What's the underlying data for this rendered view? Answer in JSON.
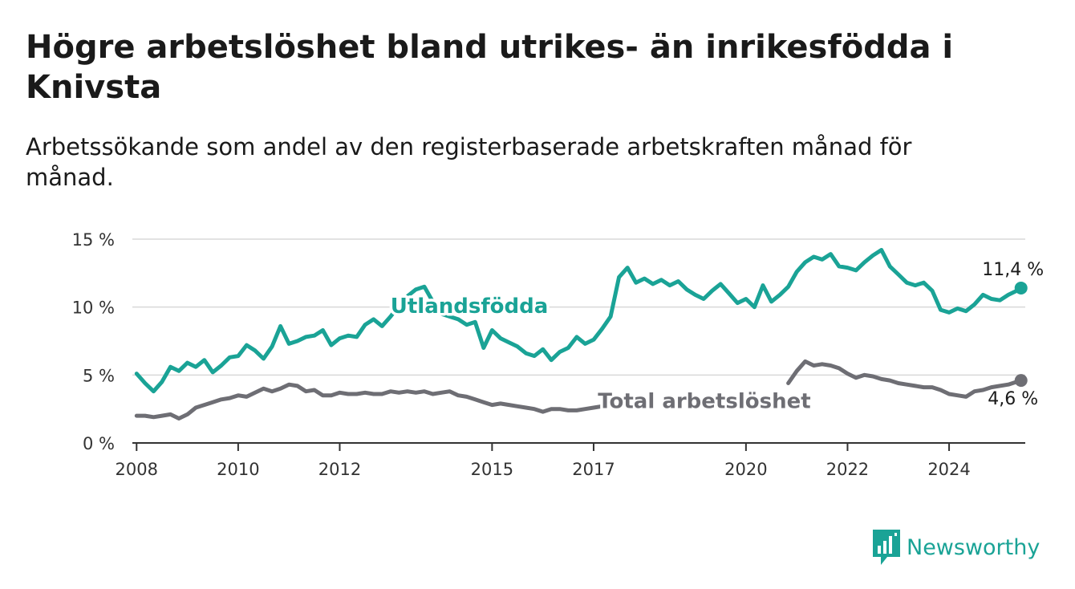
{
  "title": "Högre arbetslöshet bland utrikes- än inrikesfödda i Knivsta",
  "subtitle": "Arbetssökande som andel av den registerbaserade arbetskraften månad för månad.",
  "brand": {
    "name": "Newsworthy",
    "icon": "bar-chart-icon",
    "color": "#1aa396"
  },
  "chart_data": {
    "type": "line",
    "title": "Högre arbetslöshet bland utrikes- än inrikesfödda i Knivsta",
    "xlabel": "",
    "ylabel": "",
    "ylim": [
      0,
      15
    ],
    "xlim": [
      "2007-12",
      "2025-07"
    ],
    "grid": true,
    "y_ticks": [
      0,
      5,
      10,
      15
    ],
    "y_tick_labels": [
      "0 %",
      "5 %",
      "10 %",
      "15 %"
    ],
    "x_ticks": [
      "2008-01",
      "2010-01",
      "2012-01",
      "2015-01",
      "2017-01",
      "2020-01",
      "2022-01",
      "2024-01"
    ],
    "x_tick_labels": [
      "2008",
      "2010",
      "2012",
      "2015",
      "2017",
      "2020",
      "2022",
      "2024"
    ],
    "series": [
      {
        "name": "Utlandsfödda",
        "color": "#1aa396",
        "end_label": "11,4 %",
        "points": [
          [
            "2008-01",
            5.1
          ],
          [
            "2008-03",
            4.4
          ],
          [
            "2008-05",
            3.8
          ],
          [
            "2008-07",
            4.5
          ],
          [
            "2008-09",
            5.6
          ],
          [
            "2008-11",
            5.3
          ],
          [
            "2009-01",
            5.9
          ],
          [
            "2009-03",
            5.6
          ],
          [
            "2009-05",
            6.1
          ],
          [
            "2009-07",
            5.2
          ],
          [
            "2009-09",
            5.7
          ],
          [
            "2009-11",
            6.3
          ],
          [
            "2010-01",
            6.4
          ],
          [
            "2010-03",
            7.2
          ],
          [
            "2010-05",
            6.8
          ],
          [
            "2010-07",
            6.2
          ],
          [
            "2010-09",
            7.1
          ],
          [
            "2010-11",
            8.6
          ],
          [
            "2011-01",
            7.3
          ],
          [
            "2011-03",
            7.5
          ],
          [
            "2011-05",
            7.8
          ],
          [
            "2011-07",
            7.9
          ],
          [
            "2011-09",
            8.3
          ],
          [
            "2011-11",
            7.2
          ],
          [
            "2012-01",
            7.7
          ],
          [
            "2012-03",
            7.9
          ],
          [
            "2012-05",
            7.8
          ],
          [
            "2012-07",
            8.7
          ],
          [
            "2012-09",
            9.1
          ],
          [
            "2012-11",
            8.6
          ],
          [
            "2013-01",
            9.3
          ],
          [
            "2013-03",
            10.1
          ],
          [
            "2013-05",
            10.8
          ],
          [
            "2013-07",
            11.3
          ],
          [
            "2013-09",
            11.5
          ],
          [
            "2013-11",
            10.4
          ],
          [
            "2014-01",
            9.5
          ],
          [
            "2014-03",
            9.3
          ],
          [
            "2014-05",
            9.1
          ],
          [
            "2014-07",
            8.7
          ],
          [
            "2014-09",
            8.9
          ],
          [
            "2014-11",
            7.0
          ],
          [
            "2015-01",
            8.3
          ],
          [
            "2015-03",
            7.7
          ],
          [
            "2015-05",
            7.4
          ],
          [
            "2015-07",
            7.1
          ],
          [
            "2015-09",
            6.6
          ],
          [
            "2015-11",
            6.4
          ],
          [
            "2016-01",
            6.9
          ],
          [
            "2016-03",
            6.1
          ],
          [
            "2016-05",
            6.7
          ],
          [
            "2016-07",
            7.0
          ],
          [
            "2016-09",
            7.8
          ],
          [
            "2016-11",
            7.3
          ],
          [
            "2017-01",
            7.6
          ],
          [
            "2017-03",
            8.4
          ],
          [
            "2017-05",
            9.3
          ],
          [
            "2017-07",
            12.2
          ],
          [
            "2017-09",
            12.9
          ],
          [
            "2017-11",
            11.8
          ],
          [
            "2018-01",
            12.1
          ],
          [
            "2018-03",
            11.7
          ],
          [
            "2018-05",
            12.0
          ],
          [
            "2018-07",
            11.6
          ],
          [
            "2018-09",
            11.9
          ],
          [
            "2018-11",
            11.3
          ],
          [
            "2019-01",
            10.9
          ],
          [
            "2019-03",
            10.6
          ],
          [
            "2019-05",
            11.2
          ],
          [
            "2019-07",
            11.7
          ],
          [
            "2019-09",
            11.0
          ],
          [
            "2019-11",
            10.3
          ],
          [
            "2020-01",
            10.6
          ],
          [
            "2020-03",
            10.0
          ],
          [
            "2020-05",
            11.6
          ],
          [
            "2020-07",
            10.4
          ],
          [
            "2020-09",
            10.9
          ],
          [
            "2020-11",
            11.5
          ],
          [
            "2021-01",
            12.6
          ],
          [
            "2021-03",
            13.3
          ],
          [
            "2021-05",
            13.7
          ],
          [
            "2021-07",
            13.5
          ],
          [
            "2021-09",
            13.9
          ],
          [
            "2021-11",
            13.0
          ],
          [
            "2022-01",
            12.9
          ],
          [
            "2022-03",
            12.7
          ],
          [
            "2022-05",
            13.3
          ],
          [
            "2022-07",
            13.8
          ],
          [
            "2022-09",
            14.2
          ],
          [
            "2022-11",
            13.0
          ],
          [
            "2023-01",
            12.4
          ],
          [
            "2023-03",
            11.8
          ],
          [
            "2023-05",
            11.6
          ],
          [
            "2023-07",
            11.8
          ],
          [
            "2023-09",
            11.2
          ],
          [
            "2023-11",
            9.8
          ],
          [
            "2024-01",
            9.6
          ],
          [
            "2024-03",
            9.9
          ],
          [
            "2024-05",
            9.7
          ],
          [
            "2024-07",
            10.2
          ],
          [
            "2024-09",
            10.9
          ],
          [
            "2024-11",
            10.6
          ],
          [
            "2025-01",
            10.5
          ],
          [
            "2025-03",
            10.9
          ],
          [
            "2025-05",
            11.2
          ],
          [
            "2025-06",
            11.4
          ]
        ]
      },
      {
        "name": "Total arbetslöshet",
        "color": "#6e6e74",
        "end_label": "4,6 %",
        "points": [
          [
            "2008-01",
            2.0
          ],
          [
            "2008-03",
            2.0
          ],
          [
            "2008-05",
            1.9
          ],
          [
            "2008-07",
            2.0
          ],
          [
            "2008-09",
            2.1
          ],
          [
            "2008-11",
            1.8
          ],
          [
            "2009-01",
            2.1
          ],
          [
            "2009-03",
            2.6
          ],
          [
            "2009-05",
            2.8
          ],
          [
            "2009-07",
            3.0
          ],
          [
            "2009-09",
            3.2
          ],
          [
            "2009-11",
            3.3
          ],
          [
            "2010-01",
            3.5
          ],
          [
            "2010-03",
            3.4
          ],
          [
            "2010-05",
            3.7
          ],
          [
            "2010-07",
            4.0
          ],
          [
            "2010-09",
            3.8
          ],
          [
            "2010-11",
            4.0
          ],
          [
            "2011-01",
            4.3
          ],
          [
            "2011-03",
            4.2
          ],
          [
            "2011-05",
            3.8
          ],
          [
            "2011-07",
            3.9
          ],
          [
            "2011-09",
            3.5
          ],
          [
            "2011-11",
            3.5
          ],
          [
            "2012-01",
            3.7
          ],
          [
            "2012-03",
            3.6
          ],
          [
            "2012-05",
            3.6
          ],
          [
            "2012-07",
            3.7
          ],
          [
            "2012-09",
            3.6
          ],
          [
            "2012-11",
            3.6
          ],
          [
            "2013-01",
            3.8
          ],
          [
            "2013-03",
            3.7
          ],
          [
            "2013-05",
            3.8
          ],
          [
            "2013-07",
            3.7
          ],
          [
            "2013-09",
            3.8
          ],
          [
            "2013-11",
            3.6
          ],
          [
            "2014-01",
            3.7
          ],
          [
            "2014-03",
            3.8
          ],
          [
            "2014-05",
            3.5
          ],
          [
            "2014-07",
            3.4
          ],
          [
            "2014-09",
            3.2
          ],
          [
            "2014-11",
            3.0
          ],
          [
            "2015-01",
            2.8
          ],
          [
            "2015-03",
            2.9
          ],
          [
            "2015-05",
            2.8
          ],
          [
            "2015-07",
            2.7
          ],
          [
            "2015-09",
            2.6
          ],
          [
            "2015-11",
            2.5
          ],
          [
            "2016-01",
            2.3
          ],
          [
            "2016-03",
            2.5
          ],
          [
            "2016-05",
            2.5
          ],
          [
            "2016-07",
            2.4
          ],
          [
            "2016-09",
            2.4
          ],
          [
            "2016-11",
            2.5
          ],
          [
            "2017-01",
            2.6
          ],
          [
            "2017-03",
            2.7
          ],
          [
            "2017-05",
            3.0
          ],
          [
            "2017-07",
            2.9
          ],
          [
            "2017-09",
            3.0
          ],
          [
            "2017-11",
            null
          ],
          [
            "2020-09",
            null
          ],
          [
            "2020-11",
            4.4
          ],
          [
            "2021-01",
            5.3
          ],
          [
            "2021-03",
            6.0
          ],
          [
            "2021-05",
            5.7
          ],
          [
            "2021-07",
            5.8
          ],
          [
            "2021-09",
            5.7
          ],
          [
            "2021-11",
            5.5
          ],
          [
            "2022-01",
            5.1
          ],
          [
            "2022-03",
            4.8
          ],
          [
            "2022-05",
            5.0
          ],
          [
            "2022-07",
            4.9
          ],
          [
            "2022-09",
            4.7
          ],
          [
            "2022-11",
            4.6
          ],
          [
            "2023-01",
            4.4
          ],
          [
            "2023-03",
            4.3
          ],
          [
            "2023-05",
            4.2
          ],
          [
            "2023-07",
            4.1
          ],
          [
            "2023-09",
            4.1
          ],
          [
            "2023-11",
            3.9
          ],
          [
            "2024-01",
            3.6
          ],
          [
            "2024-03",
            3.5
          ],
          [
            "2024-05",
            3.4
          ],
          [
            "2024-07",
            3.8
          ],
          [
            "2024-09",
            3.9
          ],
          [
            "2024-11",
            4.1
          ],
          [
            "2025-01",
            4.2
          ],
          [
            "2025-03",
            4.3
          ],
          [
            "2025-05",
            4.5
          ],
          [
            "2025-06",
            4.6
          ]
        ]
      }
    ],
    "annotations": [
      {
        "text": "Utlandsfödda",
        "series": 0,
        "x": "2013-01",
        "y": 10.1,
        "color": "#1aa396"
      },
      {
        "text": "Total arbetslöshet",
        "series": 1,
        "x": "2017-02",
        "y": 3.1,
        "color": "#6e6e74"
      }
    ]
  }
}
